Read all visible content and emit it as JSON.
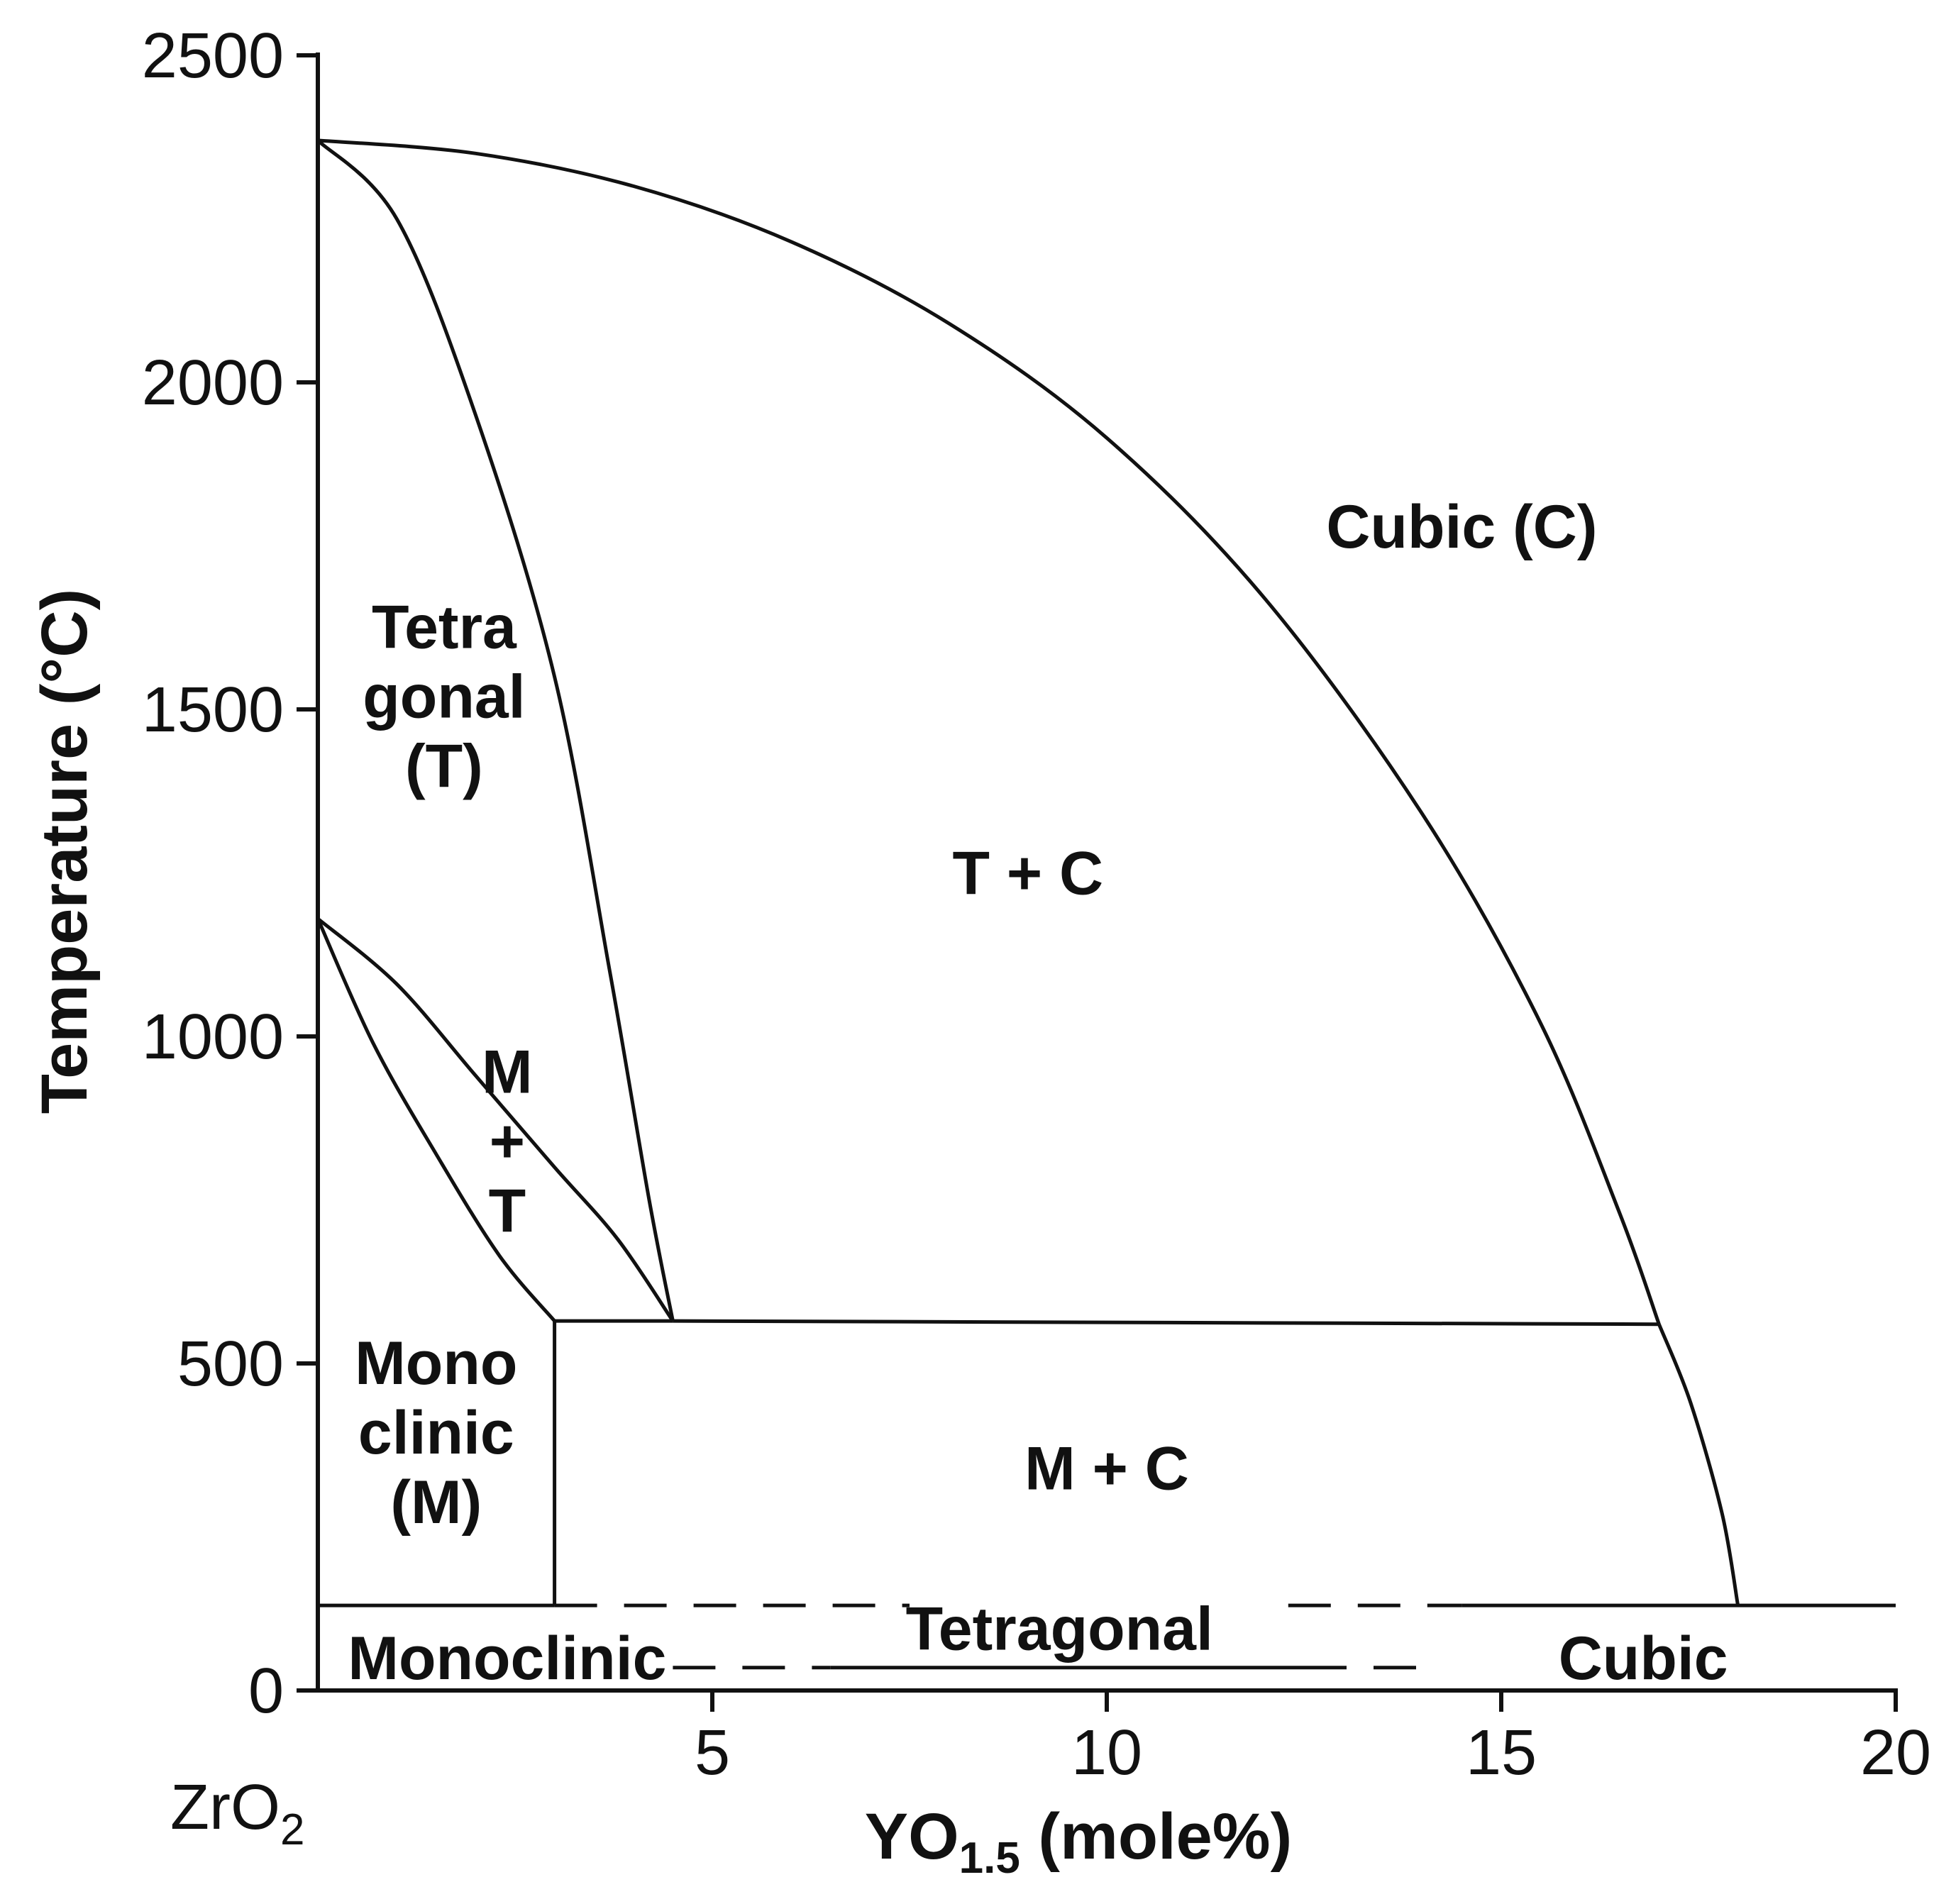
{
  "chart_data": {
    "type": "phase-diagram",
    "title": "",
    "xlabel": {
      "base": "YO",
      "sub": "1.5",
      "rest": " (mole%)"
    },
    "ylabel": "Temperature (°C)",
    "x_origin_label": {
      "base": "ZrO",
      "sub": "2"
    },
    "xlim": [
      0,
      20
    ],
    "ylim": [
      0,
      2500
    ],
    "x_ticks": [
      {
        "value": 5,
        "label": "5"
      },
      {
        "value": 10,
        "label": "10"
      },
      {
        "value": 15,
        "label": "15"
      },
      {
        "value": 20,
        "label": "20"
      }
    ],
    "y_ticks": [
      {
        "value": 0,
        "label": "0"
      },
      {
        "value": 500,
        "label": "500"
      },
      {
        "value": 1000,
        "label": "1000"
      },
      {
        "value": 1500,
        "label": "1500"
      },
      {
        "value": 2000,
        "label": "2000"
      },
      {
        "value": 2500,
        "label": "2500"
      }
    ],
    "boundaries": [
      {
        "name": "cubic-solvus",
        "style": "solid",
        "points": [
          [
            0,
            2370
          ],
          [
            2,
            2350
          ],
          [
            4,
            2300
          ],
          [
            6,
            2215
          ],
          [
            8,
            2090
          ],
          [
            10,
            1915
          ],
          [
            12,
            1670
          ],
          [
            14,
            1340
          ],
          [
            15.5,
            1020
          ],
          [
            16.5,
            730
          ],
          [
            17,
            560
          ]
        ]
      },
      {
        "name": "tetragonal-solvus",
        "style": "solid",
        "points": [
          [
            0,
            2370
          ],
          [
            1,
            2250
          ],
          [
            2,
            1950
          ],
          [
            3,
            1550
          ],
          [
            3.7,
            1100
          ],
          [
            4.2,
            750
          ],
          [
            4.5,
            565
          ]
        ]
      },
      {
        "name": "m-t-upper",
        "style": "solid",
        "points": [
          [
            0,
            1180
          ],
          [
            1,
            1080
          ],
          [
            2,
            940
          ],
          [
            3,
            800
          ],
          [
            3.8,
            690
          ],
          [
            4.5,
            565
          ]
        ]
      },
      {
        "name": "m-t-lower",
        "style": "solid",
        "points": [
          [
            0,
            1180
          ],
          [
            0.7,
            990
          ],
          [
            1.5,
            820
          ],
          [
            2.3,
            665
          ],
          [
            3,
            565
          ]
        ]
      },
      {
        "name": "eutectoid",
        "style": "solid",
        "points": [
          [
            4.5,
            565
          ],
          [
            17,
            560
          ]
        ]
      },
      {
        "name": "monoclinic-boundary",
        "style": "solid",
        "points": [
          [
            3,
            565
          ],
          [
            3,
            130
          ]
        ]
      },
      {
        "name": "m-t-short-join",
        "style": "solid",
        "points": [
          [
            3,
            565
          ],
          [
            4.5,
            565
          ]
        ]
      },
      {
        "name": "cubic-lower-solvus",
        "style": "solid",
        "points": [
          [
            17,
            560
          ],
          [
            17.4,
            440
          ],
          [
            17.8,
            270
          ],
          [
            18,
            130
          ]
        ]
      },
      {
        "name": "metastable-upper-left",
        "style": "solid",
        "points": [
          [
            0,
            130
          ],
          [
            3,
            130
          ]
        ]
      },
      {
        "name": "metastable-upper-mid",
        "style": "dashed",
        "points": [
          [
            3,
            130
          ],
          [
            7.5,
            130
          ]
        ]
      },
      {
        "name": "metastable-upper-right-dash",
        "style": "dashed",
        "points": [
          [
            12.3,
            130
          ],
          [
            14.5,
            130
          ]
        ]
      },
      {
        "name": "metastable-upper-right",
        "style": "solid",
        "points": [
          [
            14.5,
            130
          ],
          [
            20,
            130
          ]
        ]
      },
      {
        "name": "metastable-lower-dash-left",
        "style": "dashed",
        "points": [
          [
            4.5,
            35
          ],
          [
            6.5,
            35
          ]
        ]
      },
      {
        "name": "metastable-lower-solid",
        "style": "solid",
        "points": [
          [
            6.5,
            35
          ],
          [
            12.5,
            35
          ]
        ]
      },
      {
        "name": "metastable-lower-dash-right",
        "style": "dashed",
        "points": [
          [
            12.5,
            35
          ],
          [
            14,
            35
          ]
        ]
      }
    ],
    "region_labels": [
      {
        "name": "cubic",
        "lines": [
          "Cubic (C)"
        ],
        "x": 14.5,
        "y": 1780
      },
      {
        "name": "tetragonal",
        "lines": [
          "Tetra",
          "gonal",
          "(T)"
        ],
        "x": 1.6,
        "y": 1520
      },
      {
        "name": "t-plus-c",
        "lines": [
          "T + C"
        ],
        "x": 9,
        "y": 1250
      },
      {
        "name": "m-plus-t",
        "lines": [
          "M",
          "+",
          "T"
        ],
        "x": 2.4,
        "y": 840
      },
      {
        "name": "monoclinic",
        "lines": [
          "Mono",
          "clinic",
          "(M)"
        ],
        "x": 1.5,
        "y": 395
      },
      {
        "name": "m-plus-c",
        "lines": [
          "M + C"
        ],
        "x": 10,
        "y": 340
      },
      {
        "name": "monoclinic-lower",
        "lines": [
          "Monoclinic"
        ],
        "x": 2.4,
        "y": 50
      },
      {
        "name": "tetragonal-lower",
        "lines": [
          "Tetragonal"
        ],
        "x": 9.4,
        "y": 95
      },
      {
        "name": "cubic-lower",
        "lines": [
          "Cubic"
        ],
        "x": 16.8,
        "y": 50
      }
    ]
  }
}
